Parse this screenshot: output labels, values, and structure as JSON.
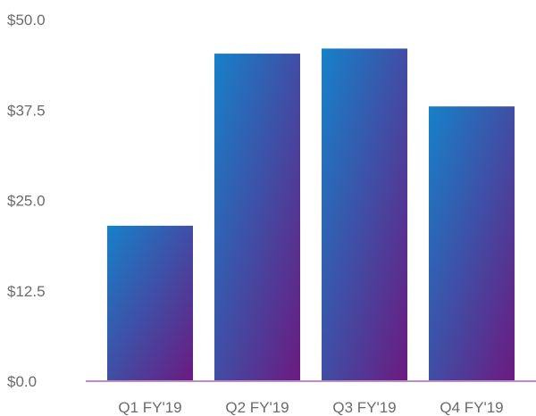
{
  "chart_data": {
    "type": "bar",
    "categories": [
      "Q1 FY'19",
      "Q2 FY'19",
      "Q3 FY'19",
      "Q4 FY'19"
    ],
    "values": [
      21.5,
      45.3,
      46.0,
      38.0
    ],
    "ylim": [
      0,
      50
    ],
    "yticks": [
      0,
      12.5,
      25,
      37.5,
      50
    ],
    "ytick_labels": [
      "$0.0",
      "$12.5",
      "$25.0",
      "$37.5",
      "$50.0"
    ],
    "grid": false,
    "legend": "none",
    "colors": {
      "bar_gradient_top": "#1681c9",
      "bar_gradient_bottom": "#6b1a80",
      "baseline": "#b98cc4",
      "text": "#6b6b6b"
    }
  }
}
